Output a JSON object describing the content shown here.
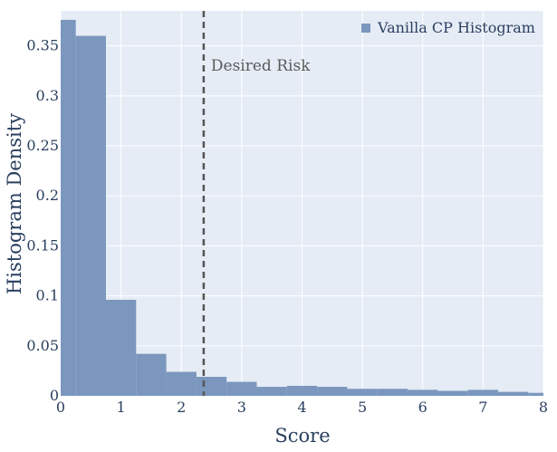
{
  "chart_data": {
    "type": "bar",
    "subtype": "histogram",
    "title": "",
    "xlabel": "Score",
    "ylabel": "Histogram Density",
    "xlim": [
      0,
      8
    ],
    "ylim": [
      0,
      0.385
    ],
    "x_ticks": [
      0,
      1,
      2,
      3,
      4,
      5,
      6,
      7,
      8
    ],
    "y_ticks": [
      0,
      0.05,
      0.1,
      0.15,
      0.2,
      0.25,
      0.3,
      0.35
    ],
    "y_tick_labels": [
      "0",
      "0.05",
      "0.1",
      "0.15",
      "0.2",
      "0.25",
      "0.3",
      "0.35"
    ],
    "grid": true,
    "legend_position": "top-right",
    "series": [
      {
        "name": "Vanilla CP Histogram",
        "color": "#7b97bd",
        "bins": [
          {
            "x0": 0.0,
            "x1": 0.25,
            "value": 0.376
          },
          {
            "x0": 0.25,
            "x1": 0.75,
            "value": 0.36
          },
          {
            "x0": 0.75,
            "x1": 1.25,
            "value": 0.096
          },
          {
            "x0": 1.25,
            "x1": 1.75,
            "value": 0.042
          },
          {
            "x0": 1.75,
            "x1": 2.25,
            "value": 0.024
          },
          {
            "x0": 2.25,
            "x1": 2.75,
            "value": 0.019
          },
          {
            "x0": 2.75,
            "x1": 3.25,
            "value": 0.014
          },
          {
            "x0": 3.25,
            "x1": 3.75,
            "value": 0.009
          },
          {
            "x0": 3.75,
            "x1": 4.25,
            "value": 0.01
          },
          {
            "x0": 4.25,
            "x1": 4.75,
            "value": 0.009
          },
          {
            "x0": 4.75,
            "x1": 5.25,
            "value": 0.007
          },
          {
            "x0": 5.25,
            "x1": 5.75,
            "value": 0.007
          },
          {
            "x0": 5.75,
            "x1": 6.25,
            "value": 0.006
          },
          {
            "x0": 6.25,
            "x1": 6.75,
            "value": 0.005
          },
          {
            "x0": 6.75,
            "x1": 7.25,
            "value": 0.006
          },
          {
            "x0": 7.25,
            "x1": 7.75,
            "value": 0.004
          },
          {
            "x0": 7.75,
            "x1": 8.0,
            "value": 0.003
          }
        ]
      }
    ],
    "annotations": [
      {
        "type": "vline",
        "x": 2.37,
        "style": "dashed",
        "color": "#555555",
        "label": "Desired Risk"
      }
    ],
    "plot_background": "#e5ecf6",
    "axis_text_color": "#2a3f5f"
  }
}
